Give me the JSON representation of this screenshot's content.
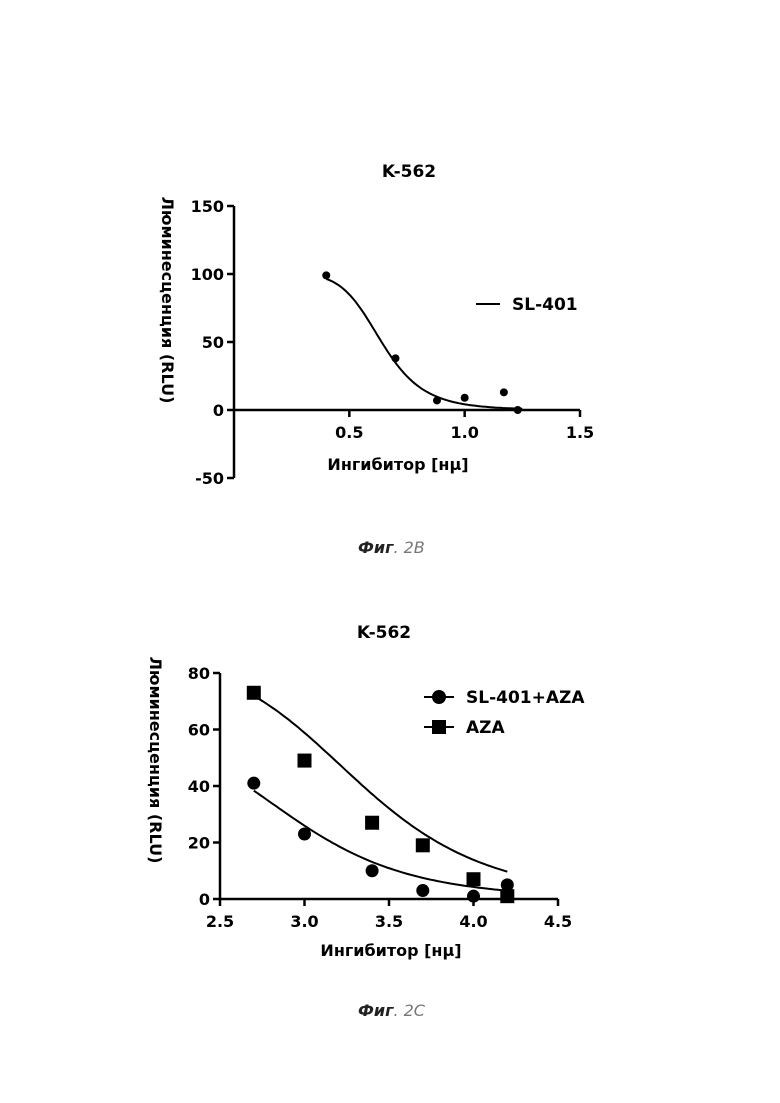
{
  "chart_data": [
    {
      "type": "scatter",
      "title": "K-562",
      "xlabel": "Ингибитор [нμ]",
      "ylabel": "Люминесценция (RLU)",
      "xlim": [
        0,
        1.5
      ],
      "ylim": [
        -50,
        150
      ],
      "x_ticks": [
        "0.5",
        "1.0",
        "1.5"
      ],
      "y_ticks": [
        "150",
        "100",
        "50",
        "0",
        "-50"
      ],
      "legend_position": "right",
      "series": [
        {
          "name": "SL-401",
          "marker": "circle",
          "x": [
            0.4,
            0.7,
            0.88,
            1.0,
            1.17,
            1.23
          ],
          "y": [
            99,
            38,
            7,
            9,
            13,
            0
          ],
          "fit": {
            "top": 100,
            "bottom": 0,
            "ec50": 0.64,
            "hill": 7,
            "x_range": [
              0.4,
              1.25
            ]
          }
        }
      ]
    },
    {
      "type": "scatter",
      "title": "K-562",
      "xlabel": "Ингибитор [нμ]",
      "ylabel": "Люминесценция (RLU)",
      "xlim": [
        2.5,
        4.5
      ],
      "ylim": [
        0,
        80
      ],
      "x_ticks": [
        "2.5",
        "3.0",
        "3.5",
        "4.0",
        "4.5"
      ],
      "y_ticks": [
        "80",
        "60",
        "40",
        "20",
        "0"
      ],
      "legend_position": "top-right",
      "series": [
        {
          "name": "SL-401+AZA",
          "marker": "circle",
          "x": [
            2.7,
            3.0,
            3.4,
            3.7,
            4.0,
            4.2
          ],
          "y": [
            41,
            23,
            10,
            3,
            1,
            5
          ],
          "fit": {
            "top": 60,
            "bottom": 0,
            "ec50": 2.9,
            "hill": 8,
            "x_range": [
              2.7,
              4.2
            ]
          }
        },
        {
          "name": "AZA",
          "marker": "square",
          "x": [
            2.7,
            3.0,
            3.4,
            3.7,
            4.0,
            4.2
          ],
          "y": [
            73,
            49,
            27,
            19,
            7,
            1
          ],
          "fit": {
            "top": 85,
            "bottom": 0,
            "ec50": 3.3,
            "hill": 8.5,
            "x_range": [
              2.7,
              4.2
            ]
          }
        }
      ]
    }
  ],
  "captions": [
    {
      "label": "Фиг",
      "number": ". 2B"
    },
    {
      "label": "Фиг",
      "number": ". 2C"
    }
  ],
  "colors": {
    "ink": "#000000",
    "caption_gray": "#777777"
  }
}
